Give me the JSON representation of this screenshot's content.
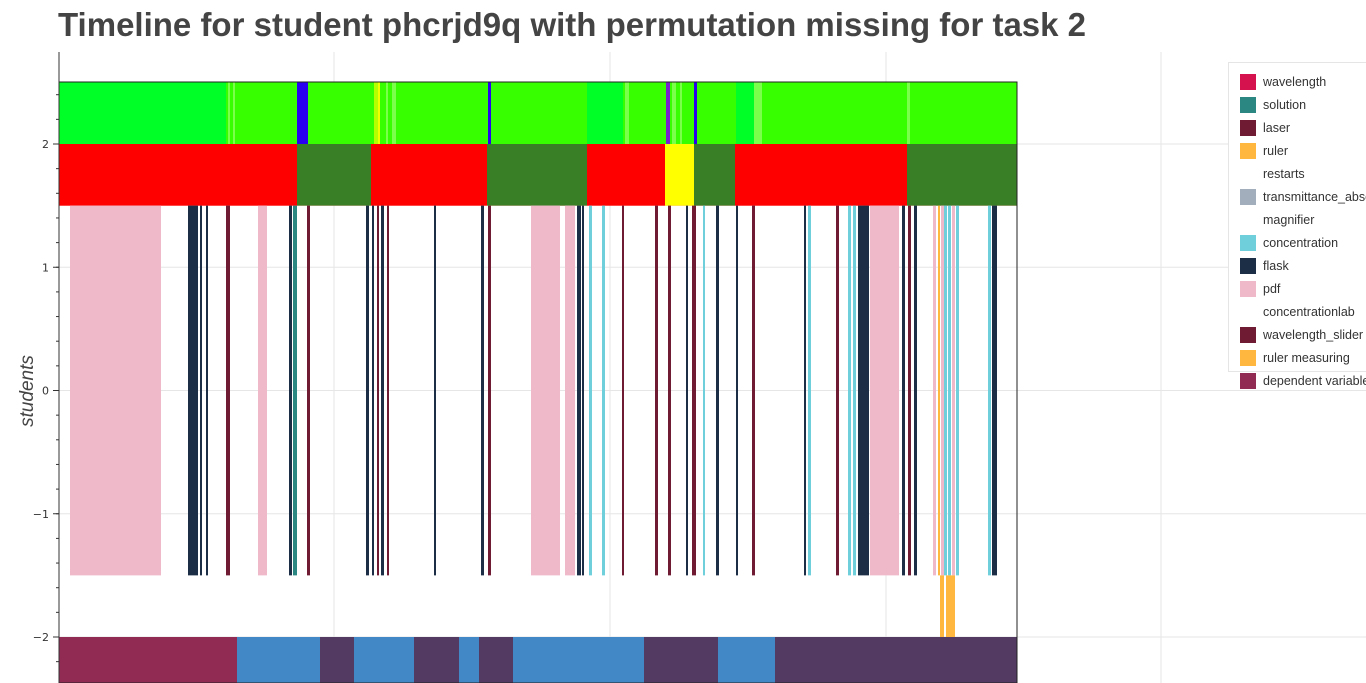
{
  "title": "Timeline for student phcrjd9q with permutation missing for task 2",
  "chart_data": {
    "type": "timeline",
    "title": "Timeline for student phcrjd9q with permutation missing for task 2",
    "ylabel": "students",
    "xlabel": "",
    "ylim": [
      -2.4,
      2.5
    ],
    "xlim": [
      0,
      1366
    ],
    "yticks": [
      {
        "value": 2,
        "label": "2"
      },
      {
        "value": 1,
        "label": "1"
      },
      {
        "value": 0,
        "label": "0"
      },
      {
        "value": -1,
        "label": "−1"
      },
      {
        "value": -2,
        "label": "−2"
      }
    ],
    "grid": true,
    "legend_position": "right",
    "legend": [
      {
        "name": "wavelength",
        "color": "#D6124E"
      },
      {
        "name": "solution",
        "color": "#2A8782"
      },
      {
        "name": "laser",
        "color": "#6E1B33"
      },
      {
        "name": "ruler",
        "color": "#FFB73F"
      },
      {
        "name": "restarts",
        "color": "#FFFFFF"
      },
      {
        "name": "transmittance_absorbance",
        "color": "#A2AEBC"
      },
      {
        "name": "magnifier",
        "color": "#FFFFFF"
      },
      {
        "name": "concentration",
        "color": "#6FD0DC"
      },
      {
        "name": "flask",
        "color": "#1B2E45"
      },
      {
        "name": "pdf",
        "color": "#EFB9CA"
      },
      {
        "name": "concentrationlab",
        "color": "#FFFFFF"
      },
      {
        "name": "wavelength_slider",
        "color": "#6E1B33"
      },
      {
        "name": "ruler measuring",
        "color": "#FFB73F"
      },
      {
        "name": "dependent variable",
        "color": "#922B54"
      }
    ],
    "rows": [
      {
        "name": "top-state-row",
        "y0": 2.0,
        "y1": 2.5,
        "base_color": "#00FF26",
        "segments": [
          {
            "x0": 226,
            "x1": 297,
            "color": "#38FF00"
          },
          {
            "x0": 228,
            "x1": 230,
            "color": "#7CFF4A"
          },
          {
            "x0": 233,
            "x1": 235,
            "color": "#7CFF4A"
          },
          {
            "x0": 297,
            "x1": 308,
            "color": "#2A00F0"
          },
          {
            "x0": 308,
            "x1": 312,
            "color": "#38FF00"
          },
          {
            "x0": 312,
            "x1": 374,
            "color": "#38FF00"
          },
          {
            "x0": 374,
            "x1": 378,
            "color": "#B4FF00"
          },
          {
            "x0": 378,
            "x1": 380,
            "color": "#F0FF00"
          },
          {
            "x0": 380,
            "x1": 488,
            "color": "#38FF00"
          },
          {
            "x0": 386,
            "x1": 388,
            "color": "#7CFF4A"
          },
          {
            "x0": 392,
            "x1": 396,
            "color": "#7CFF4A"
          },
          {
            "x0": 488,
            "x1": 491,
            "color": "#2A00F0"
          },
          {
            "x0": 491,
            "x1": 587,
            "color": "#38FF00"
          },
          {
            "x0": 587,
            "x1": 623,
            "color": "#00FF26"
          },
          {
            "x0": 623,
            "x1": 666,
            "color": "#38FF00"
          },
          {
            "x0": 625,
            "x1": 629,
            "color": "#7CFF4A"
          },
          {
            "x0": 666,
            "x1": 670,
            "color": "#7A1FD0"
          },
          {
            "x0": 670,
            "x1": 694,
            "color": "#38FF00"
          },
          {
            "x0": 672,
            "x1": 676,
            "color": "#7CFF4A"
          },
          {
            "x0": 680,
            "x1": 682,
            "color": "#7CFF4A"
          },
          {
            "x0": 694,
            "x1": 697,
            "color": "#2A00F0"
          },
          {
            "x0": 697,
            "x1": 736,
            "color": "#38FF00"
          },
          {
            "x0": 736,
            "x1": 754,
            "color": "#00FF26"
          },
          {
            "x0": 754,
            "x1": 762,
            "color": "#7CFF4A"
          },
          {
            "x0": 762,
            "x1": 907,
            "color": "#38FF00"
          },
          {
            "x0": 907,
            "x1": 910,
            "color": "#7CFF4A"
          },
          {
            "x0": 910,
            "x1": 916,
            "color": "#38FF00"
          },
          {
            "x0": 916,
            "x1": 1017,
            "color": "#38FF00"
          }
        ]
      },
      {
        "name": "status-row",
        "y0": 1.5,
        "y1": 2.0,
        "base_color": "#FF0000",
        "segments": [
          {
            "x0": 59,
            "x1": 297,
            "color": "#FF0000"
          },
          {
            "x0": 297,
            "x1": 371,
            "color": "#397F26"
          },
          {
            "x0": 371,
            "x1": 487,
            "color": "#FF0000"
          },
          {
            "x0": 487,
            "x1": 587,
            "color": "#397F26"
          },
          {
            "x0": 587,
            "x1": 665,
            "color": "#FF0000"
          },
          {
            "x0": 665,
            "x1": 694,
            "color": "#FFFF00"
          },
          {
            "x0": 694,
            "x1": 735,
            "color": "#397F26"
          },
          {
            "x0": 735,
            "x1": 907,
            "color": "#FF0000"
          },
          {
            "x0": 907,
            "x1": 1017,
            "color": "#397F26"
          }
        ]
      },
      {
        "name": "action-row",
        "y0": -1.5,
        "y1": 1.5,
        "base_color": "#FFFFFF",
        "segments": [
          {
            "x0": 70,
            "x1": 161,
            "color": "#EFB9CA"
          },
          {
            "x0": 188,
            "x1": 198,
            "color": "#1B2E45"
          },
          {
            "x0": 200,
            "x1": 202,
            "color": "#1B2E45"
          },
          {
            "x0": 206,
            "x1": 208,
            "color": "#1B2E45"
          },
          {
            "x0": 226,
            "x1": 230,
            "color": "#6E1B33"
          },
          {
            "x0": 258,
            "x1": 267,
            "color": "#EFB9CA"
          },
          {
            "x0": 289,
            "x1": 292,
            "color": "#1B2E45"
          },
          {
            "x0": 293,
            "x1": 297,
            "color": "#2A8782"
          },
          {
            "x0": 307,
            "x1": 310,
            "color": "#6E1B33"
          },
          {
            "x0": 366,
            "x1": 369,
            "color": "#1B2E45"
          },
          {
            "x0": 372,
            "x1": 374,
            "color": "#1B2E45"
          },
          {
            "x0": 377,
            "x1": 379,
            "color": "#6E1B33"
          },
          {
            "x0": 381,
            "x1": 384,
            "color": "#1B2E45"
          },
          {
            "x0": 387,
            "x1": 389,
            "color": "#6E1B33"
          },
          {
            "x0": 434,
            "x1": 436,
            "color": "#1B2E45"
          },
          {
            "x0": 481,
            "x1": 484,
            "color": "#1B2E45"
          },
          {
            "x0": 488,
            "x1": 491,
            "color": "#6E1B33"
          },
          {
            "x0": 531,
            "x1": 560,
            "color": "#EFB9CA"
          },
          {
            "x0": 565,
            "x1": 575,
            "color": "#EFB9CA"
          },
          {
            "x0": 577,
            "x1": 581,
            "color": "#1B2E45"
          },
          {
            "x0": 582,
            "x1": 584,
            "color": "#1B2E45"
          },
          {
            "x0": 589,
            "x1": 592,
            "color": "#6FD0DC"
          },
          {
            "x0": 602,
            "x1": 605,
            "color": "#6FD0DC"
          },
          {
            "x0": 622,
            "x1": 624,
            "color": "#6E1B33"
          },
          {
            "x0": 655,
            "x1": 658,
            "color": "#6E1B33"
          },
          {
            "x0": 668,
            "x1": 671,
            "color": "#6E1B33"
          },
          {
            "x0": 686,
            "x1": 688,
            "color": "#1B2E45"
          },
          {
            "x0": 692,
            "x1": 696,
            "color": "#6E1B33"
          },
          {
            "x0": 703,
            "x1": 705,
            "color": "#6FD0DC"
          },
          {
            "x0": 716,
            "x1": 719,
            "color": "#1B2E45"
          },
          {
            "x0": 736,
            "x1": 738,
            "color": "#1B2E45"
          },
          {
            "x0": 752,
            "x1": 755,
            "color": "#6E1B33"
          },
          {
            "x0": 804,
            "x1": 806,
            "color": "#1B2E45"
          },
          {
            "x0": 808,
            "x1": 811,
            "color": "#6FD0DC"
          },
          {
            "x0": 836,
            "x1": 839,
            "color": "#6E1B33"
          },
          {
            "x0": 848,
            "x1": 851,
            "color": "#6FD0DC"
          },
          {
            "x0": 853,
            "x1": 856,
            "color": "#6FD0DC"
          },
          {
            "x0": 858,
            "x1": 869,
            "color": "#1B2E45"
          },
          {
            "x0": 870,
            "x1": 899,
            "color": "#EFB9CA"
          },
          {
            "x0": 902,
            "x1": 905,
            "color": "#1B2E45"
          },
          {
            "x0": 908,
            "x1": 911,
            "color": "#6E1B33"
          },
          {
            "x0": 914,
            "x1": 917,
            "color": "#1B2E45"
          },
          {
            "x0": 933,
            "x1": 936,
            "color": "#EFB9CA"
          },
          {
            "x0": 938,
            "x1": 940,
            "color": "#FFB73F"
          },
          {
            "x0": 941,
            "x1": 944,
            "color": "#EFB9CA"
          },
          {
            "x0": 944,
            "x1": 947,
            "color": "#6FD0DC"
          },
          {
            "x0": 948,
            "x1": 951,
            "color": "#6FD0DC"
          },
          {
            "x0": 952,
            "x1": 955,
            "color": "#EFB9CA"
          },
          {
            "x0": 956,
            "x1": 959,
            "color": "#6FD0DC"
          },
          {
            "x0": 988,
            "x1": 991,
            "color": "#6FD0DC"
          },
          {
            "x0": 992,
            "x1": 997,
            "color": "#1B2E45"
          }
        ]
      },
      {
        "name": "measurement-row",
        "y0": -2.0,
        "y1": -1.5,
        "base_color": "#FFFFFF",
        "segments": [
          {
            "x0": 940,
            "x1": 944,
            "color": "#FFB73F"
          },
          {
            "x0": 946,
            "x1": 955,
            "color": "#FFB73F"
          }
        ]
      },
      {
        "name": "variable-row",
        "y0": -2.4,
        "y1": -2.0,
        "base_color": "#FFFFFF",
        "segments": [
          {
            "x0": 59,
            "x1": 237,
            "color": "#922B54"
          },
          {
            "x0": 237,
            "x1": 320,
            "color": "#4288C7"
          },
          {
            "x0": 320,
            "x1": 354,
            "color": "#533A62"
          },
          {
            "x0": 354,
            "x1": 414,
            "color": "#4288C7"
          },
          {
            "x0": 414,
            "x1": 459,
            "color": "#533A62"
          },
          {
            "x0": 459,
            "x1": 479,
            "color": "#4288C7"
          },
          {
            "x0": 479,
            "x1": 513,
            "color": "#533A62"
          },
          {
            "x0": 513,
            "x1": 644,
            "color": "#4288C7"
          },
          {
            "x0": 644,
            "x1": 718,
            "color": "#533A62"
          },
          {
            "x0": 718,
            "x1": 775,
            "color": "#4288C7"
          },
          {
            "x0": 775,
            "x1": 1017,
            "color": "#533A62"
          }
        ]
      }
    ]
  }
}
